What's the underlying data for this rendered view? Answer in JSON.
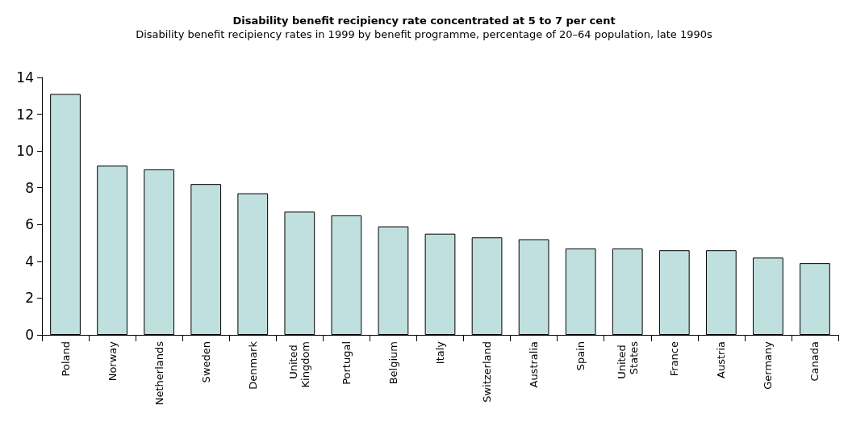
{
  "chart_data": {
    "type": "bar",
    "title": "Disability benefit recipiency rate concentrated at 5 to 7 per cent",
    "subtitle": "Disability benefit recipiency rates in 1999 by benefit programme, percentage of 20–64 population, late 1990s",
    "categories": [
      "Poland",
      "Norway",
      "Netherlands",
      "Sweden",
      "Denmark",
      "United Kingdom",
      "Portugal",
      "Belgium",
      "Italy",
      "Switzerland",
      "Australia",
      "Spain",
      "United States",
      "France",
      "Austria",
      "Germany",
      "Canada"
    ],
    "values": [
      13.1,
      9.2,
      9.0,
      8.2,
      7.7,
      6.7,
      6.5,
      5.9,
      5.5,
      5.3,
      5.2,
      4.7,
      4.7,
      4.6,
      4.6,
      4.2,
      3.9
    ],
    "color": "#bfe0df",
    "ylim": [
      0,
      14
    ],
    "yticks": [
      0,
      2,
      4,
      6,
      8,
      10,
      12,
      14
    ],
    "grid": false
  }
}
